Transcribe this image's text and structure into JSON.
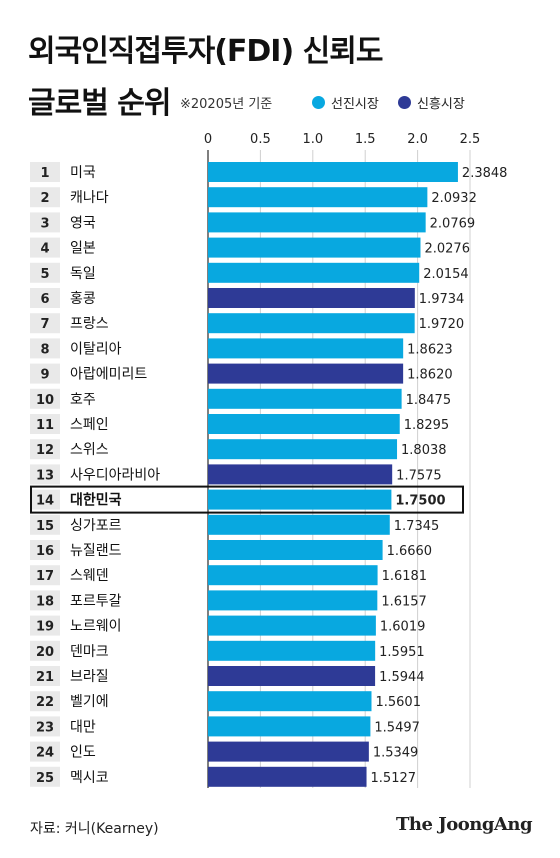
{
  "title": {
    "line1": "외국인직접투자(FDI) 신뢰도",
    "line2": "글로벌 순위"
  },
  "note": "※20205년 기준",
  "legend": {
    "developed": {
      "label": "선진시장",
      "color": "#08a8e0"
    },
    "emerging": {
      "label": "신흥시장",
      "color": "#2e3a96"
    }
  },
  "highlight_color": "#111111",
  "source": "자료: 커니(Kearney)",
  "logo": "The JoongAng",
  "chart_data": {
    "type": "bar",
    "orientation": "horizontal",
    "xlim": [
      0,
      2.5
    ],
    "xticks": [
      "0",
      "0.5",
      "1.0",
      "1.5",
      "2.0",
      "2.5"
    ],
    "grid": true,
    "highlight_rank": 14,
    "rows": [
      {
        "rank": "1",
        "country": "미국",
        "value": 2.3848,
        "label": "2.3848",
        "group": "developed"
      },
      {
        "rank": "2",
        "country": "캐나다",
        "value": 2.0932,
        "label": "2.0932",
        "group": "developed"
      },
      {
        "rank": "3",
        "country": "영국",
        "value": 2.0769,
        "label": "2.0769",
        "group": "developed"
      },
      {
        "rank": "4",
        "country": "일본",
        "value": 2.0276,
        "label": "2.0276",
        "group": "developed"
      },
      {
        "rank": "5",
        "country": "독일",
        "value": 2.0154,
        "label": "2.0154",
        "group": "developed"
      },
      {
        "rank": "6",
        "country": "홍콩",
        "value": 1.9734,
        "label": "1.9734",
        "group": "emerging"
      },
      {
        "rank": "7",
        "country": "프랑스",
        "value": 1.972,
        "label": "1.9720",
        "group": "developed"
      },
      {
        "rank": "8",
        "country": "이탈리아",
        "value": 1.8623,
        "label": "1.8623",
        "group": "developed"
      },
      {
        "rank": "9",
        "country": "아랍에미리트",
        "value": 1.862,
        "label": "1.8620",
        "group": "emerging"
      },
      {
        "rank": "10",
        "country": "호주",
        "value": 1.8475,
        "label": "1.8475",
        "group": "developed"
      },
      {
        "rank": "11",
        "country": "스페인",
        "value": 1.8295,
        "label": "1.8295",
        "group": "developed"
      },
      {
        "rank": "12",
        "country": "스위스",
        "value": 1.8038,
        "label": "1.8038",
        "group": "developed"
      },
      {
        "rank": "13",
        "country": "사우디아라비아",
        "value": 1.7575,
        "label": "1.7575",
        "group": "emerging"
      },
      {
        "rank": "14",
        "country": "대한민국",
        "value": 1.75,
        "label": "1.7500",
        "group": "developed"
      },
      {
        "rank": "15",
        "country": "싱가포르",
        "value": 1.7345,
        "label": "1.7345",
        "group": "developed"
      },
      {
        "rank": "16",
        "country": "뉴질랜드",
        "value": 1.666,
        "label": "1.6660",
        "group": "developed"
      },
      {
        "rank": "17",
        "country": "스웨덴",
        "value": 1.6181,
        "label": "1.6181",
        "group": "developed"
      },
      {
        "rank": "18",
        "country": "포르투갈",
        "value": 1.6157,
        "label": "1.6157",
        "group": "developed"
      },
      {
        "rank": "19",
        "country": "노르웨이",
        "value": 1.6019,
        "label": "1.6019",
        "group": "developed"
      },
      {
        "rank": "20",
        "country": "덴마크",
        "value": 1.5951,
        "label": "1.5951",
        "group": "developed"
      },
      {
        "rank": "21",
        "country": "브라질",
        "value": 1.5944,
        "label": "1.5944",
        "group": "emerging"
      },
      {
        "rank": "22",
        "country": "벨기에",
        "value": 1.5601,
        "label": "1.5601",
        "group": "developed"
      },
      {
        "rank": "23",
        "country": "대만",
        "value": 1.5497,
        "label": "1.5497",
        "group": "developed"
      },
      {
        "rank": "24",
        "country": "인도",
        "value": 1.5349,
        "label": "1.5349",
        "group": "emerging"
      },
      {
        "rank": "25",
        "country": "멕시코",
        "value": 1.5127,
        "label": "1.5127",
        "group": "emerging"
      }
    ]
  }
}
